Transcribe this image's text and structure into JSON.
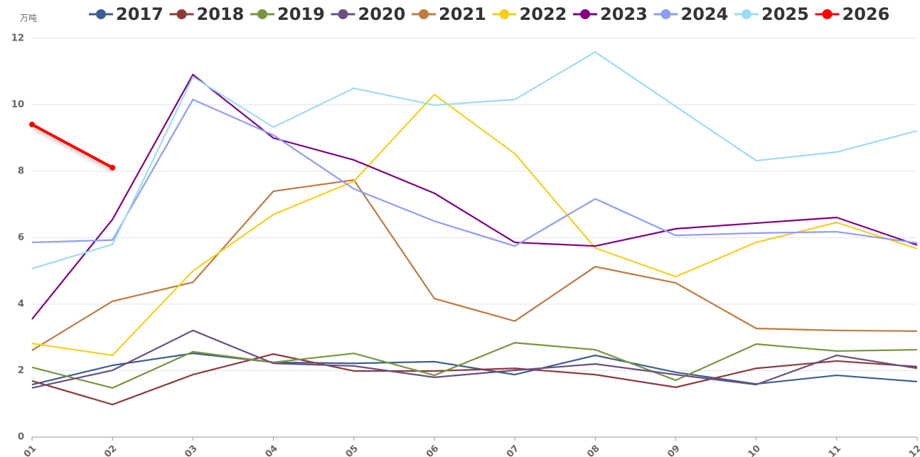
{
  "chart_data": {
    "type": "line",
    "y_unit": "万吨",
    "categories": [
      "01",
      "02",
      "03",
      "04",
      "05",
      "06",
      "07",
      "08",
      "09",
      "10",
      "11",
      "12"
    ],
    "ylim": [
      0,
      12
    ],
    "yticks": [
      0,
      2,
      4,
      6,
      8,
      10,
      12
    ],
    "grid": true,
    "series": [
      {
        "name": "2017",
        "color": "#3d5f8f",
        "values": [
          1.58,
          2.16,
          2.52,
          2.25,
          2.22,
          2.27,
          1.88,
          2.46,
          1.95,
          1.6,
          1.86,
          1.67
        ]
      },
      {
        "name": "2018",
        "color": "#8e3b3b",
        "values": [
          1.69,
          0.98,
          1.88,
          2.5,
          1.99,
          1.99,
          2.07,
          1.88,
          1.5,
          2.07,
          2.29,
          2.12
        ]
      },
      {
        "name": "2019",
        "color": "#77963f",
        "values": [
          2.1,
          1.48,
          2.57,
          2.25,
          2.52,
          1.86,
          2.84,
          2.63,
          1.71,
          2.8,
          2.59,
          2.63
        ]
      },
      {
        "name": "2020",
        "color": "#6a4f82",
        "values": [
          1.48,
          2.01,
          3.21,
          2.22,
          2.14,
          1.8,
          2.01,
          2.2,
          1.88,
          1.58,
          2.46,
          2.07
        ]
      },
      {
        "name": "2021",
        "color": "#c07a3e",
        "values": [
          2.61,
          4.09,
          4.66,
          7.4,
          7.74,
          4.17,
          3.49,
          5.13,
          4.64,
          3.27,
          3.21,
          3.19
        ]
      },
      {
        "name": "2022",
        "color": "#f7cf1d",
        "values": [
          2.82,
          2.46,
          5.0,
          6.7,
          7.7,
          10.31,
          8.53,
          5.69,
          4.83,
          5.86,
          6.46,
          5.67
        ]
      },
      {
        "name": "2023",
        "color": "#800080",
        "values": [
          3.55,
          6.55,
          10.91,
          9.0,
          8.34,
          7.34,
          5.86,
          5.75,
          6.27,
          6.44,
          6.61,
          5.78
        ]
      },
      {
        "name": "2024",
        "color": "#8f9df5",
        "values": [
          5.86,
          5.93,
          10.16,
          9.09,
          7.47,
          6.5,
          5.75,
          7.17,
          6.07,
          6.14,
          6.18,
          5.84
        ]
      },
      {
        "name": "2025",
        "color": "#9ddcf5",
        "values": [
          5.07,
          5.8,
          10.84,
          9.33,
          10.5,
          9.99,
          10.16,
          11.59,
          9.95,
          8.32,
          8.58,
          9.22
        ]
      },
      {
        "name": "2026",
        "color": "#ff0000",
        "markers": true,
        "values": [
          9.41,
          8.11,
          null,
          null,
          null,
          null,
          null,
          null,
          null,
          null,
          null,
          null
        ]
      }
    ]
  }
}
